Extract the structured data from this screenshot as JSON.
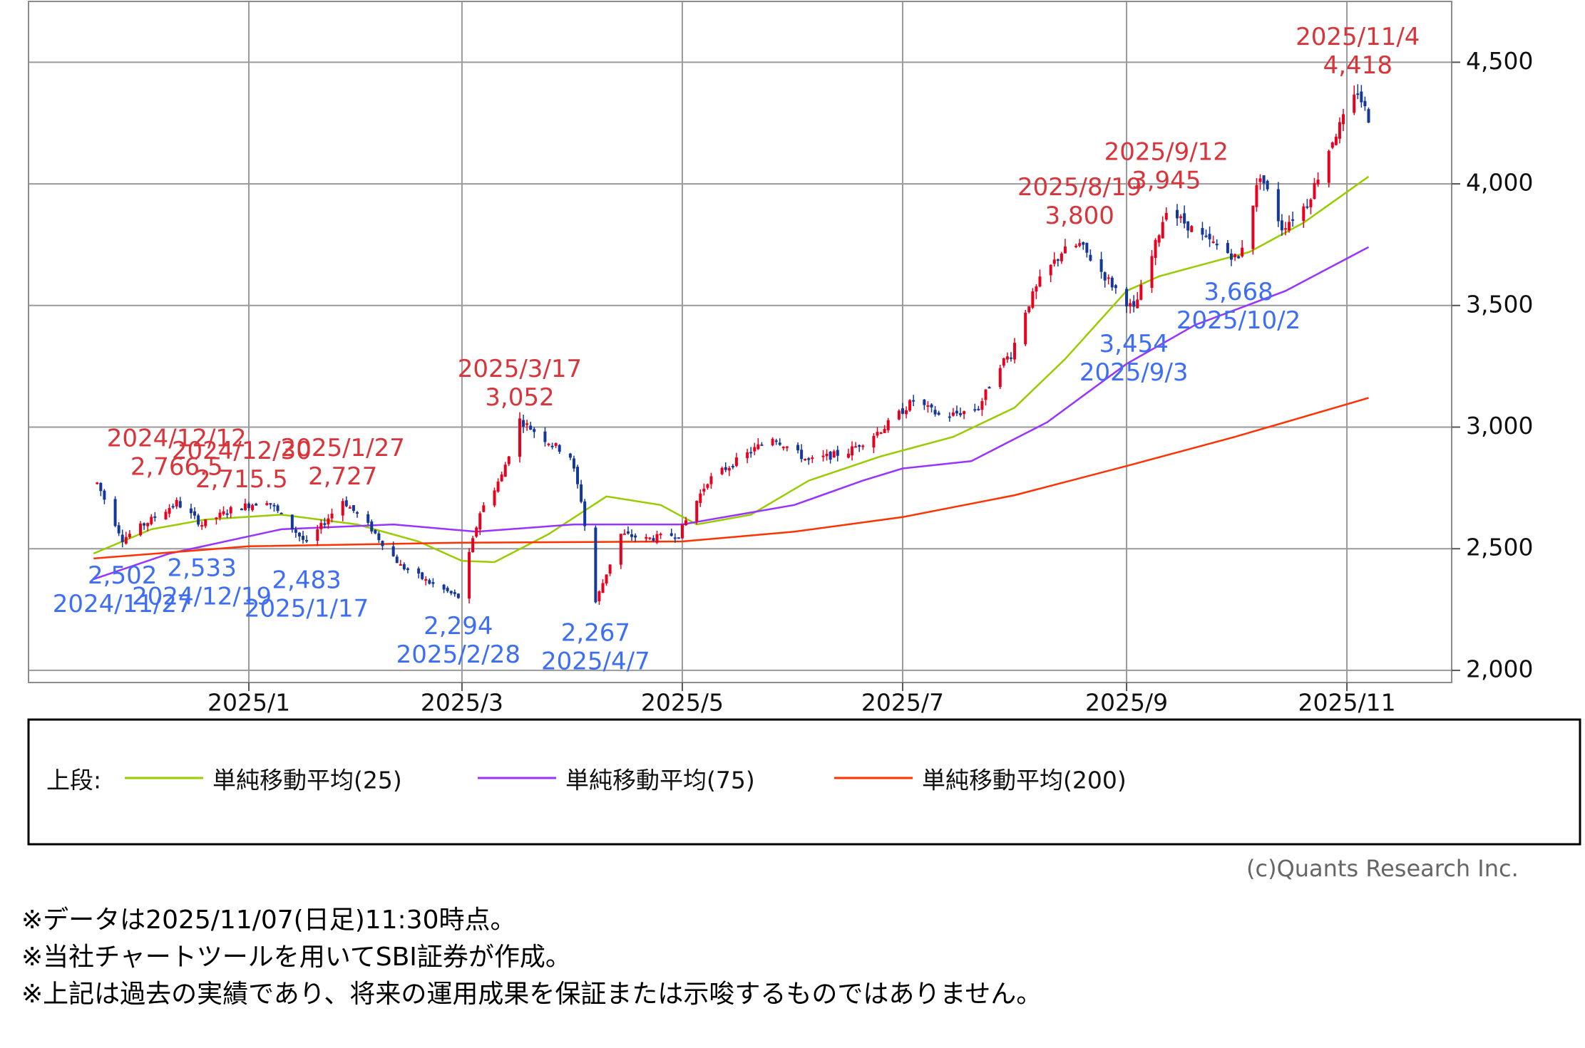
{
  "chart_data": {
    "type": "candlestick",
    "title": "",
    "xlabel": "",
    "ylabel": "",
    "ylim": [
      1950,
      4750
    ],
    "y_ticks": [
      2000,
      2500,
      3000,
      3500,
      4000,
      4500
    ],
    "y_tick_labels": [
      "2,000",
      "2,500",
      "3,000",
      "3,500",
      "4,000",
      "4,500"
    ],
    "x_ticks": [
      {
        "date": "2025-01-01",
        "label": "2025/1"
      },
      {
        "date": "2025-03-01",
        "label": "2025/3"
      },
      {
        "date": "2025-05-01",
        "label": "2025/5"
      },
      {
        "date": "2025-07-01",
        "label": "2025/7"
      },
      {
        "date": "2025-09-01",
        "label": "2025/9"
      },
      {
        "date": "2025-11-01",
        "label": "2025/11"
      }
    ],
    "x_range": [
      "2024-11-01",
      "2025-11-30"
    ],
    "grid": true,
    "up_color": "#e8001f",
    "down_color": "#14389a",
    "price_path": [
      [
        "2024-11-20",
        2770
      ],
      [
        "2024-11-27",
        2540
      ],
      [
        "2024-12-05",
        2620
      ],
      [
        "2024-12-12",
        2690
      ],
      [
        "2024-12-19",
        2600
      ],
      [
        "2024-12-27",
        2660
      ],
      [
        "2025-01-06",
        2700
      ],
      [
        "2025-01-17",
        2520
      ],
      [
        "2025-01-27",
        2700
      ],
      [
        "2025-02-04",
        2580
      ],
      [
        "2025-02-12",
        2430
      ],
      [
        "2025-02-20",
        2360
      ],
      [
        "2025-02-28",
        2300
      ],
      [
        "2025-03-06",
        2650
      ],
      [
        "2025-03-12",
        2800
      ],
      [
        "2025-03-17",
        3030
      ],
      [
        "2025-03-24",
        2950
      ],
      [
        "2025-03-31",
        2880
      ],
      [
        "2025-04-03",
        2700
      ],
      [
        "2025-04-07",
        2280
      ],
      [
        "2025-04-14",
        2560
      ],
      [
        "2025-04-21",
        2540
      ],
      [
        "2025-04-30",
        2560
      ],
      [
        "2025-05-08",
        2780
      ],
      [
        "2025-05-16",
        2860
      ],
      [
        "2025-05-26",
        2960
      ],
      [
        "2025-06-05",
        2860
      ],
      [
        "2025-06-16",
        2900
      ],
      [
        "2025-06-26",
        3000
      ],
      [
        "2025-07-04",
        3110
      ],
      [
        "2025-07-12",
        3040
      ],
      [
        "2025-07-22",
        3080
      ],
      [
        "2025-07-28",
        3260
      ],
      [
        "2025-07-31",
        3300
      ],
      [
        "2025-08-04",
        3480
      ],
      [
        "2025-08-08",
        3600
      ],
      [
        "2025-08-14",
        3720
      ],
      [
        "2025-08-19",
        3750
      ],
      [
        "2025-08-26",
        3620
      ],
      [
        "2025-09-03",
        3480
      ],
      [
        "2025-09-08",
        3700
      ],
      [
        "2025-09-12",
        3900
      ],
      [
        "2025-09-22",
        3780
      ],
      [
        "2025-10-02",
        3690
      ],
      [
        "2025-10-08",
        4040
      ],
      [
        "2025-10-14",
        3820
      ],
      [
        "2025-10-21",
        3920
      ],
      [
        "2025-10-28",
        4180
      ],
      [
        "2025-11-04",
        4380
      ],
      [
        "2025-11-07",
        4270
      ]
    ],
    "series": [
      {
        "name": "単純移動平均(25)",
        "color": "#99cc00",
        "points": [
          [
            "2024-11-19",
            2480
          ],
          [
            "2024-12-05",
            2580
          ],
          [
            "2024-12-20",
            2620
          ],
          [
            "2025-01-10",
            2640
          ],
          [
            "2025-01-31",
            2600
          ],
          [
            "2025-02-17",
            2530
          ],
          [
            "2025-03-01",
            2450
          ],
          [
            "2025-03-10",
            2445
          ],
          [
            "2025-03-25",
            2560
          ],
          [
            "2025-04-10",
            2715
          ],
          [
            "2025-04-25",
            2680
          ],
          [
            "2025-05-05",
            2600
          ],
          [
            "2025-05-20",
            2640
          ],
          [
            "2025-06-05",
            2780
          ],
          [
            "2025-06-25",
            2880
          ],
          [
            "2025-07-15",
            2960
          ],
          [
            "2025-08-01",
            3080
          ],
          [
            "2025-08-15",
            3280
          ],
          [
            "2025-09-01",
            3560
          ],
          [
            "2025-09-10",
            3620
          ],
          [
            "2025-09-25",
            3680
          ],
          [
            "2025-10-05",
            3720
          ],
          [
            "2025-10-20",
            3840
          ],
          [
            "2025-11-07",
            4030
          ]
        ]
      },
      {
        "name": "単純移動平均(75)",
        "color": "#9933ff",
        "points": [
          [
            "2024-11-19",
            2375
          ],
          [
            "2024-12-10",
            2480
          ],
          [
            "2025-01-10",
            2580
          ],
          [
            "2025-02-10",
            2600
          ],
          [
            "2025-03-05",
            2570
          ],
          [
            "2025-04-01",
            2600
          ],
          [
            "2025-05-01",
            2600
          ],
          [
            "2025-06-01",
            2680
          ],
          [
            "2025-06-20",
            2780
          ],
          [
            "2025-07-01",
            2830
          ],
          [
            "2025-07-20",
            2860
          ],
          [
            "2025-08-10",
            3020
          ],
          [
            "2025-09-01",
            3260
          ],
          [
            "2025-09-20",
            3420
          ],
          [
            "2025-10-15",
            3560
          ],
          [
            "2025-11-07",
            3740
          ]
        ]
      },
      {
        "name": "単純移動平均(200)",
        "color": "#ff3300",
        "points": [
          [
            "2024-11-19",
            2460
          ],
          [
            "2025-01-01",
            2510
          ],
          [
            "2025-03-01",
            2525
          ],
          [
            "2025-05-01",
            2530
          ],
          [
            "2025-06-01",
            2570
          ],
          [
            "2025-07-01",
            2630
          ],
          [
            "2025-08-01",
            2720
          ],
          [
            "2025-09-01",
            2840
          ],
          [
            "2025-10-01",
            2960
          ],
          [
            "2025-11-07",
            3120
          ]
        ]
      }
    ],
    "annotations": [
      {
        "kind": "high",
        "date_label": "2024/12/12",
        "value_label": "2,766.5",
        "date": "2024-12-12",
        "value": 2766.5
      },
      {
        "kind": "high",
        "date_label": "2024/12/30",
        "value_label": "2,715.5",
        "date": "2024-12-30",
        "value": 2715.5
      },
      {
        "kind": "high",
        "date_label": "2025/1/27",
        "value_label": "2,727",
        "date": "2025-01-27",
        "value": 2727
      },
      {
        "kind": "high",
        "date_label": "2025/3/17",
        "value_label": "3,052",
        "date": "2025-03-17",
        "value": 3052
      },
      {
        "kind": "high",
        "date_label": "2025/8/19",
        "value_label": "3,800",
        "date": "2025-08-19",
        "value": 3800
      },
      {
        "kind": "high",
        "date_label": "2025/9/12",
        "value_label": "3,945",
        "date": "2025-09-12",
        "value": 3945
      },
      {
        "kind": "high",
        "date_label": "2025/11/4",
        "value_label": "4,418",
        "date": "2025-11-04",
        "value": 4418
      },
      {
        "kind": "low",
        "date_label": "2024/11/27",
        "value_label": "2,502",
        "date": "2024-11-27",
        "value": 2502
      },
      {
        "kind": "low",
        "date_label": "2024/12/19",
        "value_label": "2,533",
        "date": "2024-12-19",
        "value": 2533
      },
      {
        "kind": "low",
        "date_label": "2025/1/17",
        "value_label": "2,483",
        "date": "2025-01-17",
        "value": 2483
      },
      {
        "kind": "low",
        "date_label": "2025/2/28",
        "value_label": "2,294",
        "date": "2025-02-28",
        "value": 2294
      },
      {
        "kind": "low",
        "date_label": "2025/4/7",
        "value_label": "2,267",
        "date": "2025-04-07",
        "value": 2267
      },
      {
        "kind": "low",
        "date_label": "2025/9/3",
        "value_label": "3,454",
        "date": "2025-09-03",
        "value": 3454
      },
      {
        "kind": "low",
        "date_label": "2025/10/2",
        "value_label": "3,668",
        "date": "2025-10-02",
        "value": 3668
      }
    ],
    "annotation_colors": {
      "high": "#d9343a",
      "low": "#3d6ef5"
    }
  },
  "legend": {
    "prefix": "上段:",
    "items": [
      "単純移動平均(25)",
      "単純移動平均(75)",
      "単純移動平均(200)"
    ]
  },
  "credit": "(c)Quants Research Inc.",
  "notes": [
    "※データは2025/11/07(日足)11:30時点。",
    "※当社チャートツールを用いてSBI証券が作成。",
    "※上記は過去の実績であり、将来の運用成果を保証または示唆するものではありません。"
  ]
}
